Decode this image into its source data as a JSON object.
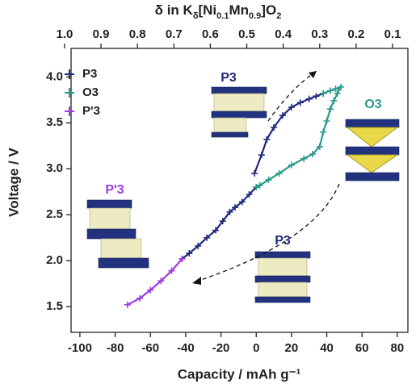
{
  "chart_data": {
    "type": "scatter",
    "xlabel": "Capacity / mAh g⁻¹",
    "ylabel": "Voltage / V",
    "x2label": [
      "δ in K",
      "δ",
      "[Ni",
      "0.1",
      "Mn",
      "0.9",
      "]O",
      "2"
    ],
    "xlim": [
      -105,
      86
    ],
    "ylim": [
      1.22,
      4.31
    ],
    "x2lim": [
      0.982,
      0.058
    ],
    "xticks": [
      -100,
      -80,
      -60,
      -40,
      -20,
      0,
      20,
      40,
      60,
      80
    ],
    "yticks": [
      {
        "value": 1.5,
        "label": "1.5"
      },
      {
        "value": 2,
        "label": "2.0"
      },
      {
        "value": 2.5,
        "label": "2.5"
      },
      {
        "value": 3,
        "label": "3.0"
      },
      {
        "value": 3.5,
        "label": "3.5"
      },
      {
        "value": 4,
        "label": "4.0"
      }
    ],
    "x2ticks": [
      {
        "value": 1,
        "label": "1.0"
      },
      0.9,
      0.8,
      0.7,
      0.6,
      0.5,
      0.4,
      0.3,
      0.2,
      0.1
    ],
    "legend": "upper left",
    "series": [
      {
        "name": "P3",
        "color": "#1f2a7a",
        "x": [
          -1,
          3,
          6,
          10,
          15,
          20,
          25,
          30,
          34,
          38,
          null,
          0,
          -4,
          -8,
          -12,
          -15,
          -19,
          -23,
          -28,
          -33,
          -38,
          -42
        ],
        "values": [
          2.95,
          3.15,
          3.32,
          3.45,
          3.58,
          3.67,
          3.72,
          3.76,
          3.79,
          3.82,
          null,
          2.8,
          2.72,
          2.64,
          2.58,
          2.53,
          2.43,
          2.33,
          2.25,
          2.16,
          2.08,
          2.02
        ]
      },
      {
        "name": "O3",
        "color": "#2a9a8c",
        "x": [
          38,
          42,
          45,
          48,
          46,
          44,
          42,
          40,
          38,
          36,
          32,
          27,
          20,
          13,
          7,
          2,
          0
        ],
        "values": [
          3.82,
          3.85,
          3.87,
          3.89,
          3.82,
          3.74,
          3.65,
          3.52,
          3.4,
          3.24,
          3.16,
          3.11,
          3.04,
          2.95,
          2.88,
          2.82,
          2.8
        ]
      },
      {
        "name": "P'3",
        "color": "#9b3de0",
        "x": [
          -42,
          -48,
          -54,
          -60,
          -66,
          -73
        ],
        "values": [
          2.02,
          1.89,
          1.78,
          1.68,
          1.59,
          1.52
        ]
      }
    ],
    "annotations": [
      {
        "text": "P3",
        "color": "#1f2a7a"
      },
      {
        "text": "O3",
        "color": "#2a9a8c"
      },
      {
        "text": "P'3",
        "color": "#9b3de0"
      },
      {
        "text": "P3",
        "color": "#1f2a7a"
      }
    ]
  }
}
